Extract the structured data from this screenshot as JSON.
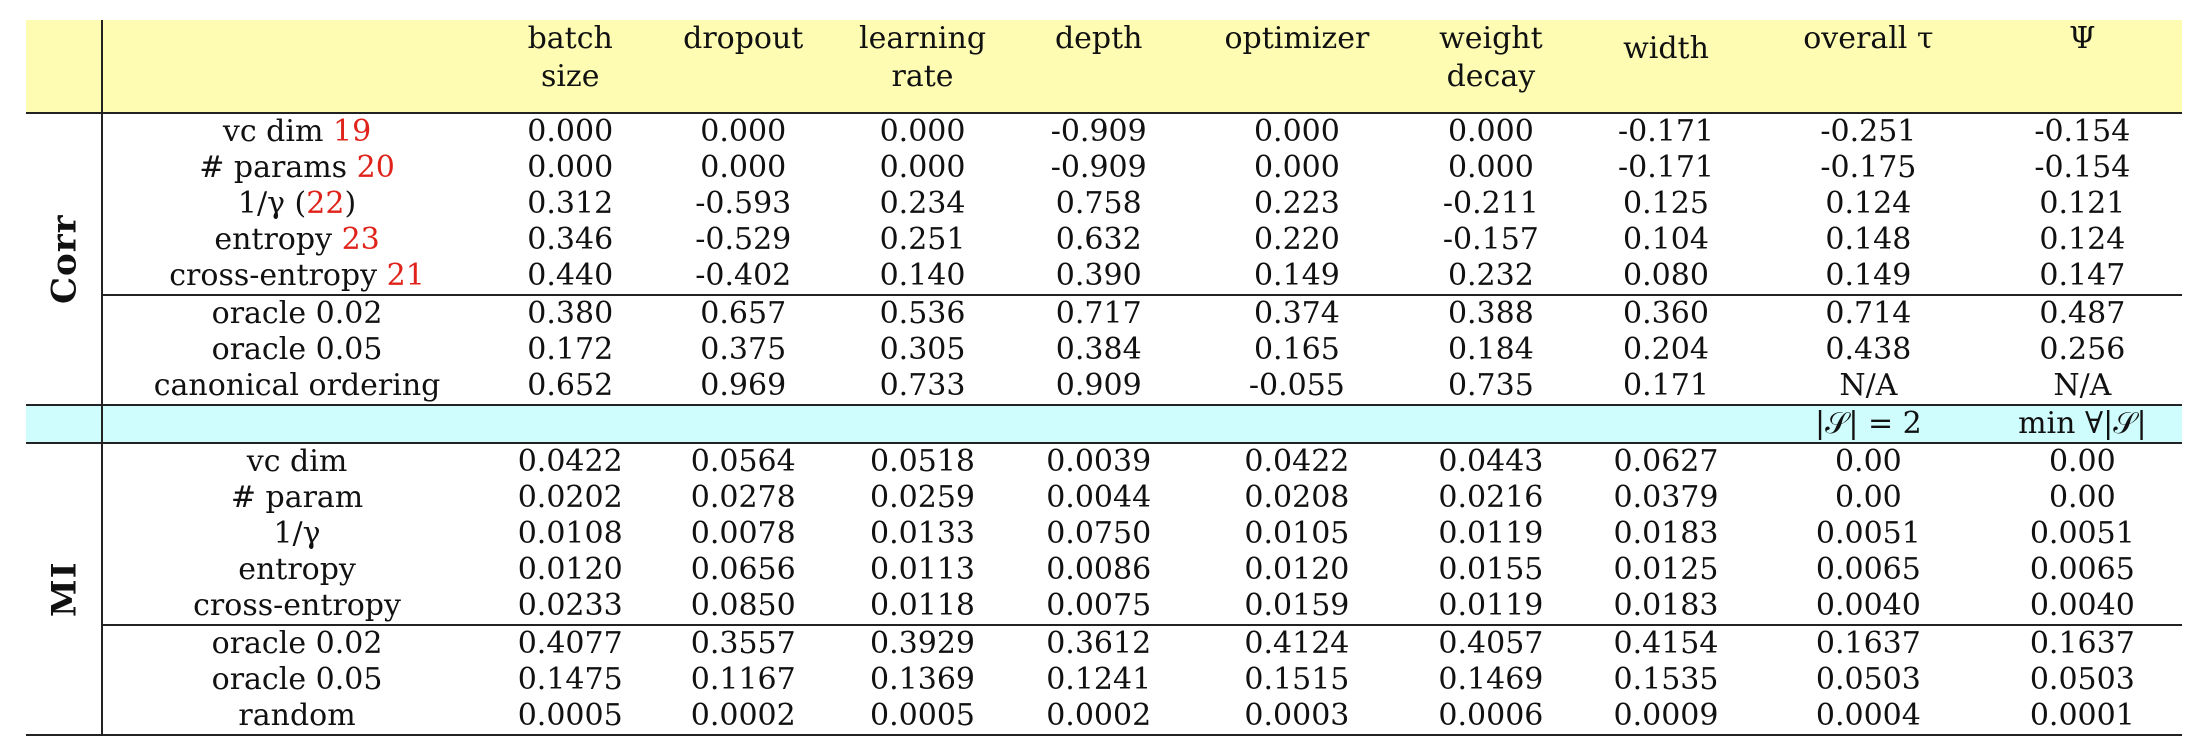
{
  "header": {
    "columns": [
      {
        "line1": "batch",
        "line2": "size"
      },
      {
        "line1": "dropout",
        "line2": ""
      },
      {
        "line1": "learning",
        "line2": "rate"
      },
      {
        "line1": "depth",
        "line2": ""
      },
      {
        "line1": "optimizer",
        "line2": ""
      },
      {
        "line1": "weight",
        "line2": "decay"
      },
      {
        "line1": "width",
        "line2": ""
      },
      {
        "line1": "",
        "line2": "overall τ"
      },
      {
        "line1": "",
        "line2": "Ψ"
      }
    ]
  },
  "corr": {
    "label": "Corr",
    "rows_a": [
      {
        "name": "vc dim",
        "ref": "19",
        "values": [
          "0.000",
          "0.000",
          "0.000",
          "-0.909",
          "0.000",
          "0.000",
          "-0.171",
          "-0.251",
          "-0.154"
        ]
      },
      {
        "name": "# params",
        "ref": "20",
        "values": [
          "0.000",
          "0.000",
          "0.000",
          "-0.909",
          "0.000",
          "0.000",
          "-0.171",
          "-0.175",
          "-0.154"
        ]
      },
      {
        "name": "1/γ (",
        "ref": "22",
        "suffix": ")",
        "values": [
          "0.312",
          "-0.593",
          "0.234",
          "0.758",
          "0.223",
          "-0.211",
          "0.125",
          "0.124",
          "0.121"
        ]
      },
      {
        "name": "entropy",
        "ref": "23",
        "values": [
          "0.346",
          "-0.529",
          "0.251",
          "0.632",
          "0.220",
          "-0.157",
          "0.104",
          "0.148",
          "0.124"
        ]
      },
      {
        "name": "cross-entropy",
        "ref": "21",
        "values": [
          "0.440",
          "-0.402",
          "0.140",
          "0.390",
          "0.149",
          "0.232",
          "0.080",
          "0.149",
          "0.147"
        ]
      }
    ],
    "rows_b": [
      {
        "name": "oracle 0.02",
        "values": [
          "0.380",
          "0.657",
          "0.536",
          "0.717",
          "0.374",
          "0.388",
          "0.360",
          "0.714",
          "0.487"
        ]
      },
      {
        "name": "oracle 0.05",
        "values": [
          "0.172",
          "0.375",
          "0.305",
          "0.384",
          "0.165",
          "0.184",
          "0.204",
          "0.438",
          "0.256"
        ]
      },
      {
        "name": "canonical ordering",
        "values": [
          "0.652",
          "0.969",
          "0.733",
          "0.909",
          "-0.055",
          "0.735",
          "0.171",
          "N/A",
          "N/A"
        ]
      }
    ]
  },
  "mid": {
    "col8": "|𝒮| = 2",
    "col9": "min ∀|𝒮|"
  },
  "mi": {
    "label": "MI",
    "rows_a": [
      {
        "name": "vc dim",
        "values": [
          "0.0422",
          "0.0564",
          "0.0518",
          "0.0039",
          "0.0422",
          "0.0443",
          "0.0627",
          "0.00",
          "0.00"
        ]
      },
      {
        "name": "# param",
        "values": [
          "0.0202",
          "0.0278",
          "0.0259",
          "0.0044",
          "0.0208",
          "0.0216",
          "0.0379",
          "0.00",
          "0.00"
        ]
      },
      {
        "name": "1/γ",
        "values": [
          "0.0108",
          "0.0078",
          "0.0133",
          "0.0750",
          "0.0105",
          "0.0119",
          "0.0183",
          "0.0051",
          "0.0051"
        ]
      },
      {
        "name": "entropy",
        "values": [
          "0.0120",
          "0.0656",
          "0.0113",
          "0.0086",
          "0.0120",
          "0.0155",
          "0.0125",
          "0.0065",
          "0.0065"
        ]
      },
      {
        "name": "cross-entropy",
        "values": [
          "0.0233",
          "0.0850",
          "0.0118",
          "0.0075",
          "0.0159",
          "0.0119",
          "0.0183",
          "0.0040",
          "0.0040"
        ]
      }
    ],
    "rows_b": [
      {
        "name": "oracle 0.02",
        "values": [
          "0.4077",
          "0.3557",
          "0.3929",
          "0.3612",
          "0.4124",
          "0.4057",
          "0.4154",
          "0.1637",
          "0.1637"
        ]
      },
      {
        "name": "oracle 0.05",
        "values": [
          "0.1475",
          "0.1167",
          "0.1369",
          "0.1241",
          "0.1515",
          "0.1469",
          "0.1535",
          "0.0503",
          "0.0503"
        ]
      },
      {
        "name": "random",
        "values": [
          "0.0005",
          "0.0002",
          "0.0005",
          "0.0002",
          "0.0003",
          "0.0006",
          "0.0009",
          "0.0004",
          "0.0001"
        ]
      }
    ]
  }
}
